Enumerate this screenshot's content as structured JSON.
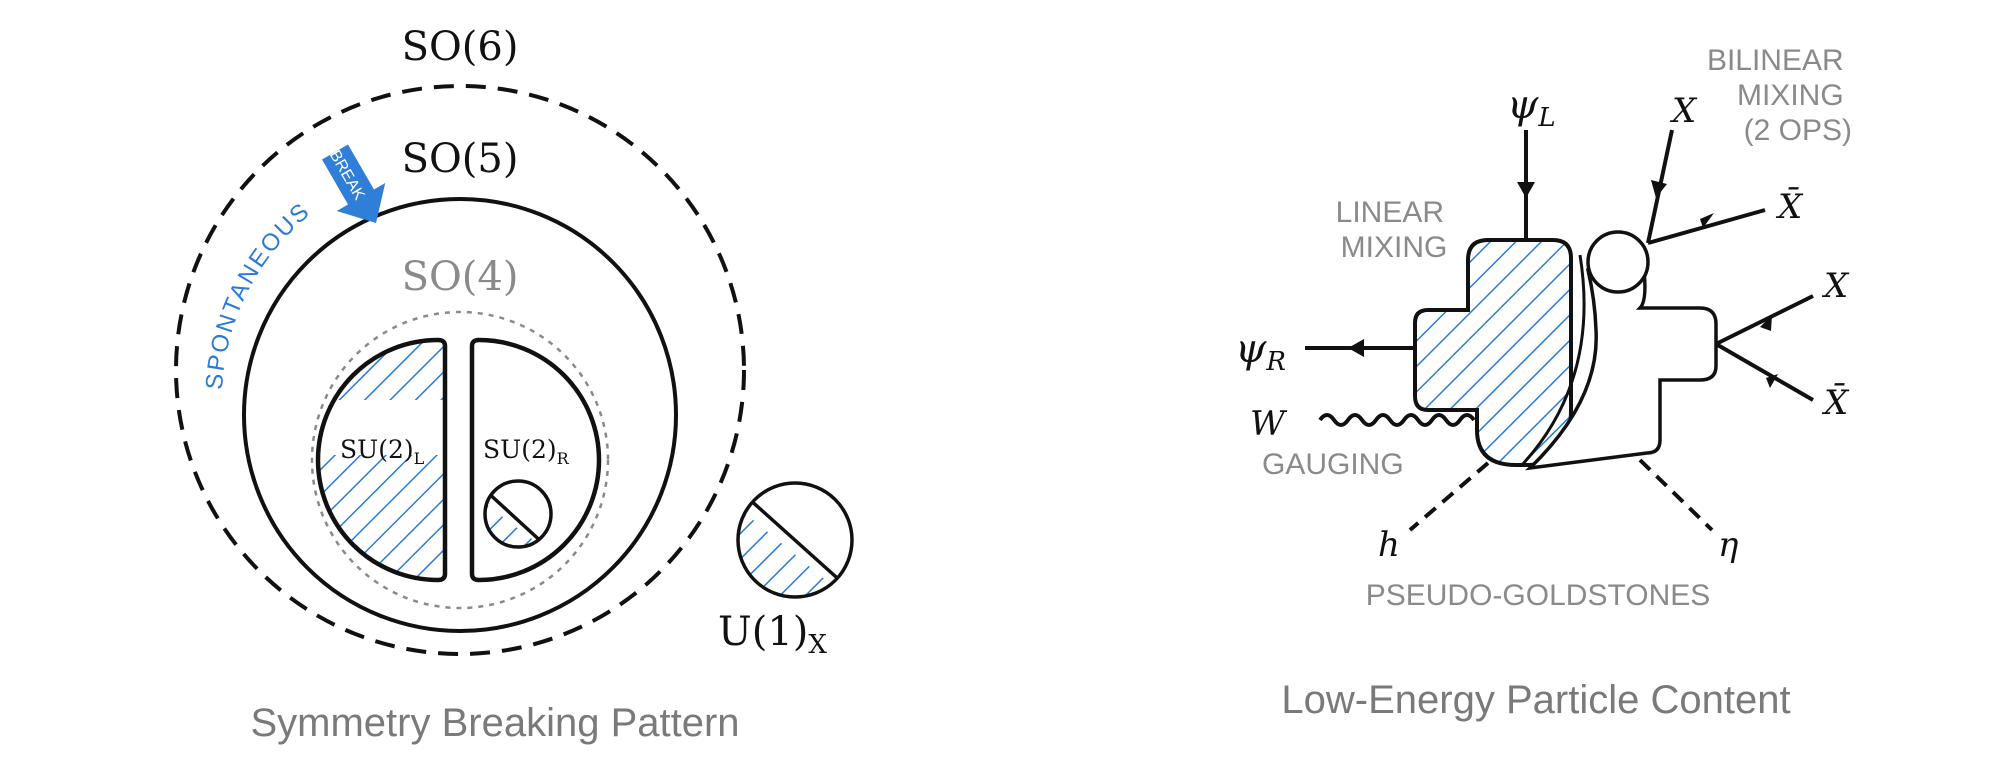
{
  "colors": {
    "ink": "#111111",
    "hatch": "#2a7bd6",
    "grey_text": "#8a8a8a",
    "caption": "#7a7a7a",
    "arrow_blue": "#2f7fd9"
  },
  "left_panel": {
    "caption": "Symmetry Breaking Pattern",
    "so6_label": "SO(6)",
    "so5_label": "SO(5)",
    "so4_label": "SO(4)",
    "su2l_label": "SU(2)",
    "su2l_sub": "L",
    "su2r_label": "SU(2)",
    "su2r_sub": "R",
    "u1_label": "U(1)",
    "u1_sub": "X",
    "break_label": "BREAK",
    "spontaneous_label": "SPONTANEOUS"
  },
  "right_panel": {
    "caption": "Low-Energy Particle Content",
    "psi_l": "ψ",
    "psi_l_sub": "L",
    "psi_r": "ψ",
    "psi_r_sub": "R",
    "w_label": "W",
    "h_label": "h",
    "eta_label": "η",
    "x_top": "X",
    "xbar_top": "X̄",
    "x_right": "X",
    "xbar_right": "X̄",
    "linear_mixing": [
      "LINEAR",
      "MIXING"
    ],
    "bilinear_mixing": [
      "BILINEAR",
      "MIXING",
      "(2 OPS)"
    ],
    "gauging": "GAUGING",
    "pseudo_goldstones": "PSEUDO-GOLDSTONES"
  }
}
